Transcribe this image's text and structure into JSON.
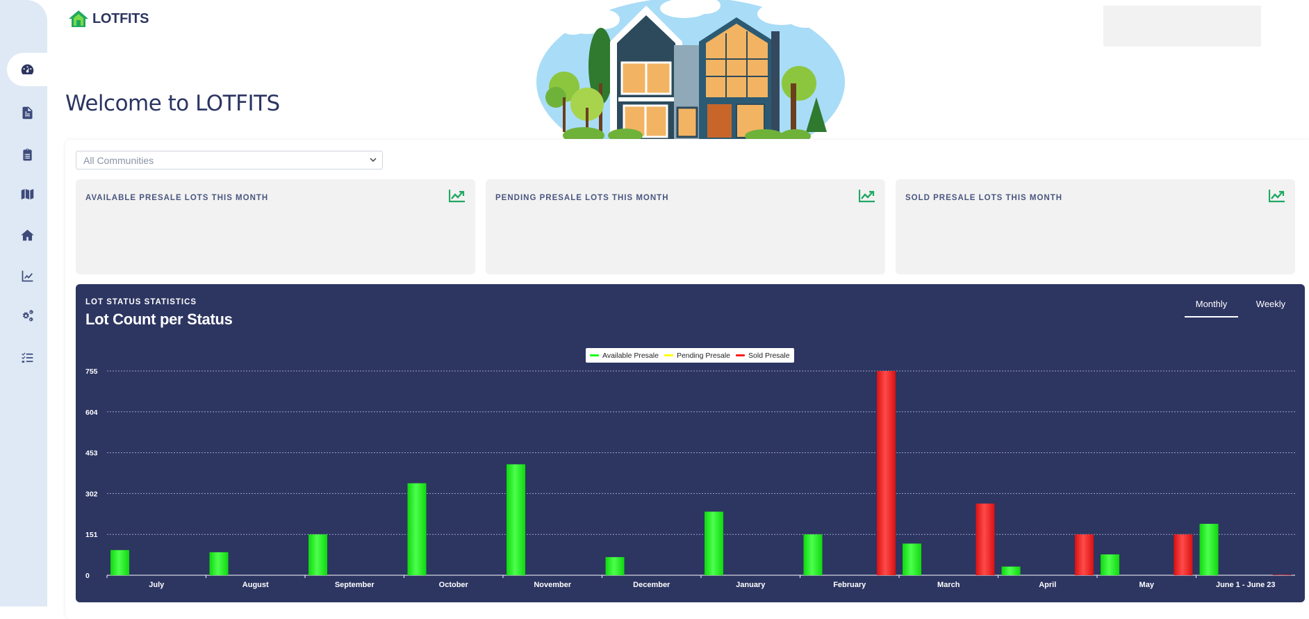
{
  "app": {
    "logo_text": "LOTFITS",
    "welcome": "Welcome to LOTFITS"
  },
  "sidebar": {
    "items": [
      {
        "name": "dashboard-icon",
        "active": true
      },
      {
        "name": "document-icon",
        "active": false
      },
      {
        "name": "clipboard-icon",
        "active": false
      },
      {
        "name": "map-icon",
        "active": false
      },
      {
        "name": "home-icon",
        "active": false
      },
      {
        "name": "chart-line-icon",
        "active": false
      },
      {
        "name": "gears-icon",
        "active": false
      },
      {
        "name": "tasks-icon",
        "active": false
      }
    ]
  },
  "filter": {
    "community_select": "All Communities"
  },
  "cards": [
    {
      "title": "AVAILABLE PRESALE LOTS THIS MONTH",
      "icon": "trend-up-icon"
    },
    {
      "title": "PENDING PRESALE LOTS THIS MONTH",
      "icon": "trend-up-icon"
    },
    {
      "title": "SOLD PRESALE LOTS THIS MONTH",
      "icon": "trend-up-icon"
    }
  ],
  "stats": {
    "kicker": "LOT STATUS STATISTICS",
    "title": "Lot Count per Status",
    "tabs": [
      {
        "label": "Monthly",
        "active": true
      },
      {
        "label": "Weekly",
        "active": false
      }
    ]
  },
  "colors": {
    "accent": "#1fa861",
    "panel_bg": "#2d3561",
    "available": "#19ff19",
    "pending": "#ffff00",
    "sold": "#ff1a1a"
  },
  "chart_data": {
    "type": "bar",
    "title": "",
    "xlabel": "",
    "ylabel": "",
    "ylim": [
      0,
      755
    ],
    "yticks": [
      0,
      151,
      302,
      453,
      604,
      755
    ],
    "grid": true,
    "legend_position": "top-center",
    "categories": [
      "July",
      "August",
      "September",
      "October",
      "November",
      "December",
      "January",
      "February",
      "March",
      "April",
      "May",
      "June 1 - June 23"
    ],
    "series": [
      {
        "name": "Available Presale",
        "color": "#19ff19",
        "values": [
          93,
          85,
          151,
          340,
          410,
          67,
          235,
          151,
          117,
          32,
          77,
          190
        ]
      },
      {
        "name": "Pending Presale",
        "color": "#ffff00",
        "values": [
          0,
          0,
          0,
          0,
          0,
          0,
          0,
          0,
          0,
          0,
          0,
          0
        ]
      },
      {
        "name": "Sold Presale",
        "color": "#ff1a1a",
        "values": [
          0,
          0,
          0,
          0,
          0,
          0,
          0,
          755,
          265,
          151,
          151,
          2
        ]
      }
    ]
  }
}
